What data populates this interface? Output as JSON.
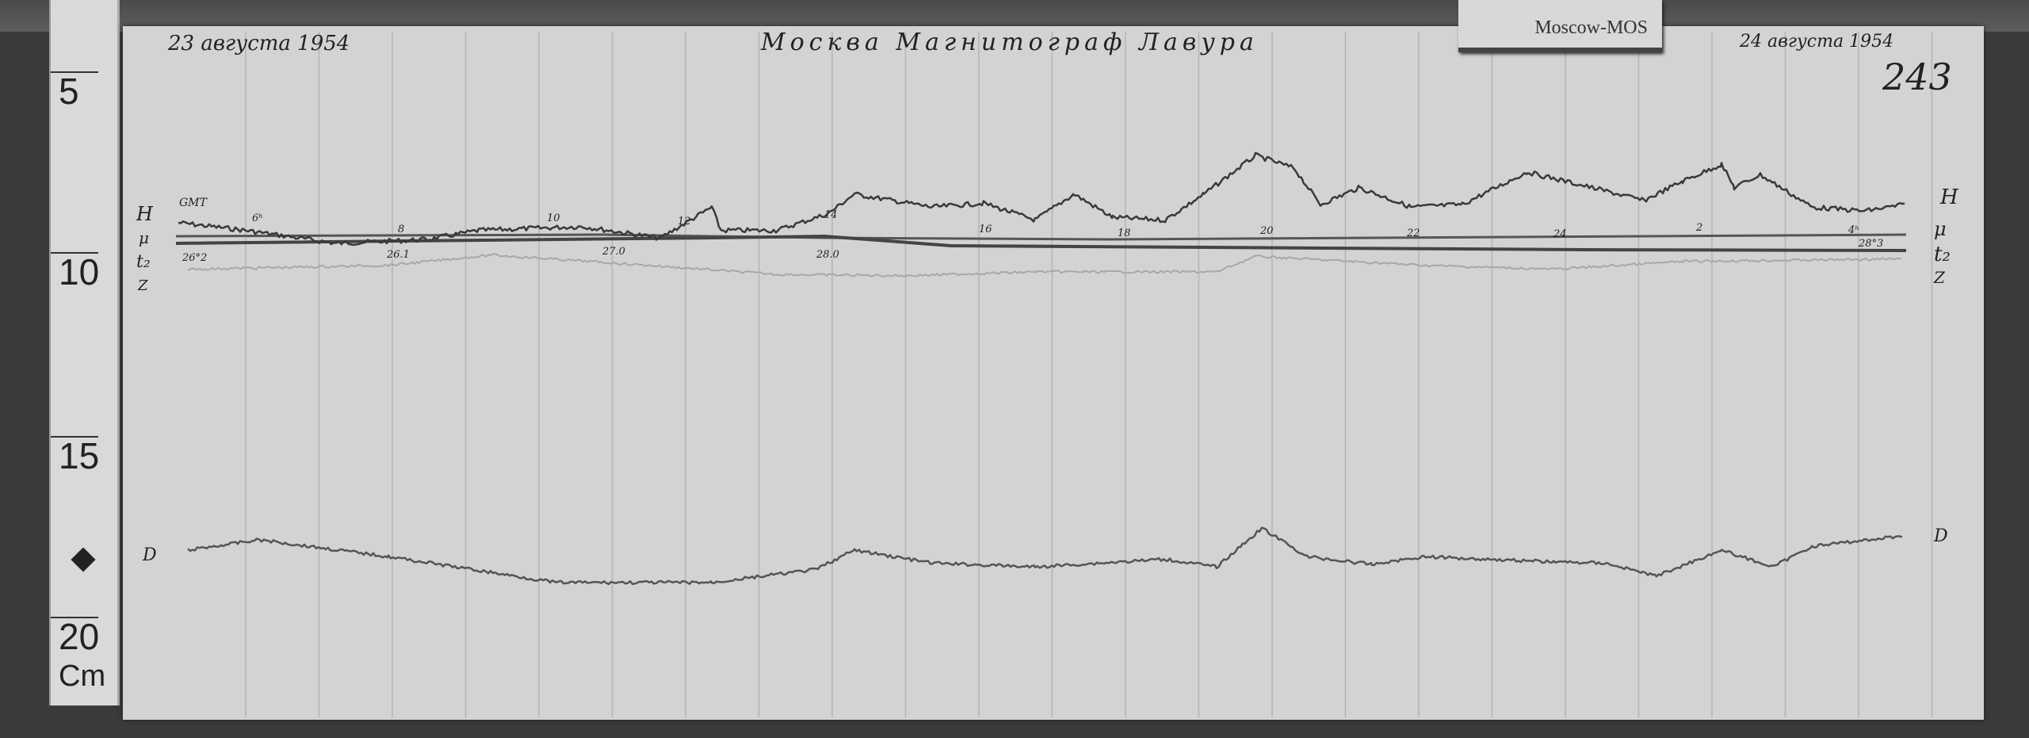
{
  "ruler": {
    "marks": [
      "5",
      "10",
      "15",
      "20"
    ],
    "unit": "Cm"
  },
  "label": {
    "station": "Moscow-MOS"
  },
  "header": {
    "date_start": "23 августа 1954",
    "title": "Москва Магнитограф Лавура",
    "date_end": "24 августа 1954",
    "sheet_number": "243"
  },
  "channels": {
    "left": [
      "H",
      "μ",
      "t₂",
      "Z"
    ],
    "right": [
      "H",
      "μ",
      "t₂",
      "Z"
    ],
    "d_left": "D",
    "d_right": "D",
    "time_ref": "GMT"
  },
  "hour_labels": [
    "6ʰ",
    "8",
    "10",
    "12",
    "14",
    "16",
    "18",
    "20",
    "22",
    "24",
    "2",
    "4ʰ"
  ],
  "temperature_labels": [
    "26°2",
    "26.1",
    "27.0",
    "28.0",
    "28°3"
  ],
  "colors": {
    "paper": "#d3d3d3",
    "trace": "#3a3a3a",
    "background": "#3a3a3a"
  }
}
